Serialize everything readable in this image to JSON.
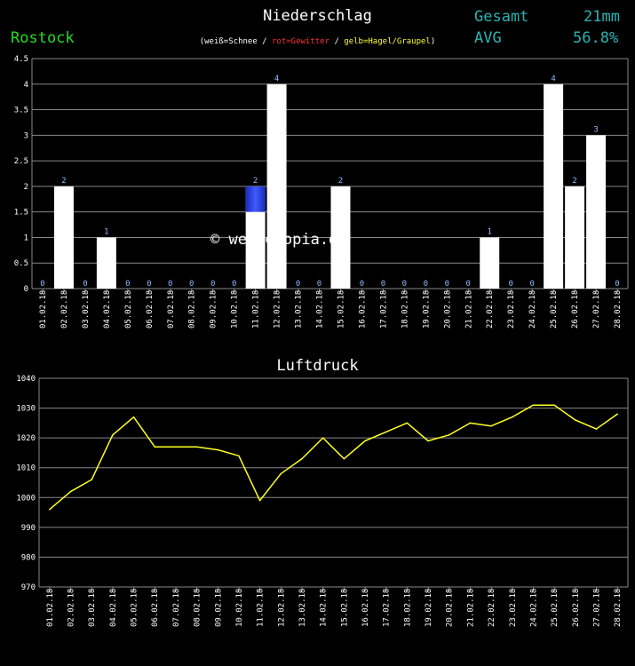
{
  "header": {
    "title": "Niederschlag",
    "station": "Rostock",
    "legend_prefix": "(weiß=Schnee / ",
    "legend_red": "rot=Gewitter",
    "legend_mid": " / ",
    "legend_yellow": "gelb=Hagel/Graupel",
    "legend_suffix": ")",
    "sum_label": "Gesamt",
    "sum_value": "21mm",
    "avg_label": "AVG",
    "avg_value": "56.8%"
  },
  "watermark": "© wetteropia.de",
  "colors": {
    "snow": "#ffffff",
    "rain_gradient": [
      "#2233cc",
      "#3a59ff"
    ],
    "pressure_line": "#ffff22",
    "value_label": "#8fb8ff",
    "grid": "#888888"
  },
  "chart_data": [
    {
      "type": "bar",
      "title": "Niederschlag",
      "categories": [
        "01.02.18",
        "02.02.18",
        "03.02.18",
        "04.02.18",
        "05.02.18",
        "06.02.18",
        "07.02.18",
        "08.02.18",
        "09.02.18",
        "10.02.18",
        "11.02.18",
        "12.02.18",
        "13.02.18",
        "14.02.18",
        "15.02.18",
        "16.02.18",
        "17.02.18",
        "18.02.18",
        "19.02.18",
        "20.02.18",
        "21.02.18",
        "22.02.18",
        "23.02.18",
        "24.02.18",
        "25.02.18",
        "26.02.18",
        "27.02.18",
        "28.02.18"
      ],
      "values": [
        0,
        2,
        0,
        1,
        0,
        0,
        0,
        0,
        0,
        0,
        2,
        4,
        0,
        0,
        2,
        0,
        0,
        0,
        0,
        0,
        0,
        1,
        0,
        0,
        4,
        2,
        3,
        0
      ],
      "ylim": [
        0,
        4.5
      ],
      "yticks": [
        "0",
        "0.5",
        "1",
        "1.5",
        "2",
        "2.5",
        "3",
        "3.5",
        "4",
        "4.5"
      ],
      "grid": true
    },
    {
      "type": "line",
      "title": "Luftdruck",
      "categories": [
        "01.02.18",
        "02.02.18",
        "03.02.18",
        "04.02.18",
        "05.02.18",
        "06.02.18",
        "07.02.18",
        "08.02.18",
        "09.02.18",
        "10.02.18",
        "11.02.18",
        "12.02.18",
        "13.02.18",
        "14.02.18",
        "15.02.18",
        "16.02.18",
        "17.02.18",
        "18.02.18",
        "19.02.18",
        "20.02.18",
        "21.02.18",
        "22.02.18",
        "23.02.18",
        "24.02.18",
        "25.02.18",
        "26.02.18",
        "27.02.18",
        "28.02.18"
      ],
      "values": [
        996,
        1002,
        1006,
        1021,
        1027,
        1017,
        1017,
        1017,
        1016,
        1014,
        999,
        1008,
        1013,
        1020,
        1013,
        1019,
        1022,
        1025,
        1019,
        1021,
        1025,
        1024,
        1027,
        1031,
        1031,
        1026,
        1023,
        1028
      ],
      "ylim": [
        970,
        1040
      ],
      "yticks": [
        "970",
        "980",
        "990",
        "1000",
        "1010",
        "1020",
        "1030",
        "1040"
      ],
      "grid": true
    }
  ]
}
